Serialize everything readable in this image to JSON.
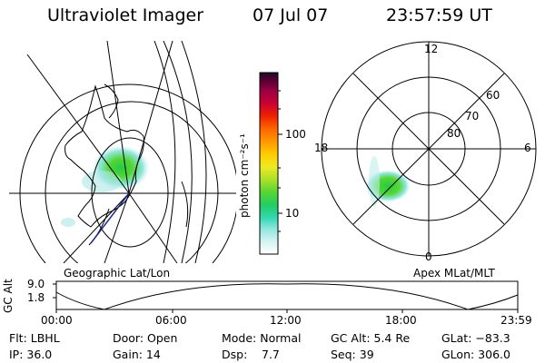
{
  "header": {
    "title": "Ultraviolet Imager",
    "date": "07 Jul 07",
    "time": "23:57:59 UT"
  },
  "left_panel": {
    "label": "Geographic Lat/Lon"
  },
  "right_panel": {
    "label": "Apex MLat/MLT",
    "mlt_labels": {
      "top": "12",
      "left": "18",
      "right": "6",
      "bottom": "0"
    },
    "lat_labels": [
      "60",
      "70",
      "80"
    ]
  },
  "colorbar": {
    "label": "photon cm⁻²s⁻¹",
    "ticks": [
      "100",
      "10"
    ],
    "colors": [
      "#ffffff",
      "#d4f2f2",
      "#8fe6e0",
      "#33d8b0",
      "#22cc66",
      "#55d633",
      "#aae02a",
      "#eeea22",
      "#ffcc00",
      "#ff9900",
      "#ff6600",
      "#ee2200",
      "#cc0033",
      "#990044",
      "#550033",
      "#1a0a22"
    ]
  },
  "altitude_plot": {
    "ylabel": "GC Alt",
    "yticks": [
      "9.0",
      "1.8"
    ],
    "xticks": [
      "00:00",
      "06:00",
      "12:00",
      "18:00",
      "23:59"
    ]
  },
  "status": {
    "flt": "Flt: LBHL",
    "door": "Door: Open",
    "mode": "Mode: Normal",
    "gc_alt": "GC Alt: 5.4 Re",
    "glat": "GLat: −83.3",
    "ip": "IP: 36.0",
    "gain": "Gain: 14",
    "dsp_label": "Dsp:",
    "dsp_value": "7.7",
    "seq": "Seq: 39",
    "glon": "GLon: 306.0"
  }
}
